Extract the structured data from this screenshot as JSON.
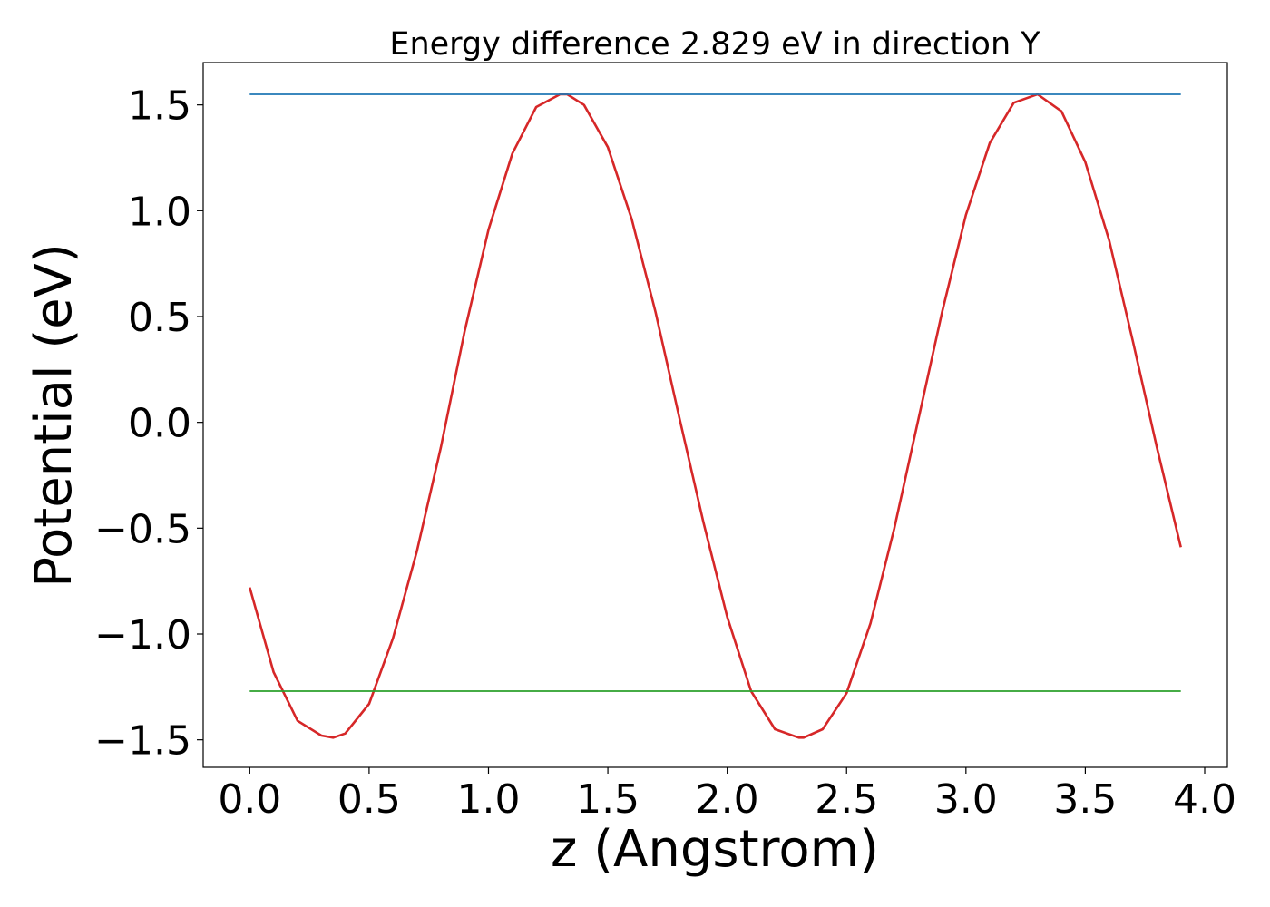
{
  "chart_data": {
    "type": "line",
    "title": "Energy difference 2.829 eV in direction Y",
    "xlabel": "z (Angstrom)",
    "ylabel": "Potential (eV)",
    "xlim": [
      -0.195,
      4.095
    ],
    "ylim": [
      -1.63,
      1.7
    ],
    "xticks": [
      0.0,
      0.5,
      1.0,
      1.5,
      2.0,
      2.5,
      3.0,
      3.5,
      4.0
    ],
    "xtick_labels": [
      "0.0",
      "0.5",
      "1.0",
      "1.5",
      "2.0",
      "2.5",
      "3.0",
      "3.5",
      "4.0"
    ],
    "yticks": [
      -1.5,
      -1.0,
      -0.5,
      0.0,
      0.5,
      1.0,
      1.5
    ],
    "ytick_labels": [
      "−1.5",
      "−1.0",
      "−0.5",
      "0.0",
      "0.5",
      "1.0",
      "1.5"
    ],
    "grid": false,
    "legend": "none",
    "series": [
      {
        "color": "#d62728",
        "x": [
          0.0,
          0.1,
          0.2,
          0.3,
          0.35,
          0.4,
          0.5,
          0.6,
          0.7,
          0.8,
          0.9,
          1.0,
          1.1,
          1.2,
          1.3,
          1.33,
          1.4,
          1.5,
          1.6,
          1.7,
          1.8,
          1.9,
          2.0,
          2.1,
          2.2,
          2.3,
          2.32,
          2.4,
          2.5,
          2.6,
          2.7,
          2.8,
          2.9,
          3.0,
          3.1,
          3.2,
          3.3,
          3.4,
          3.5,
          3.6,
          3.7,
          3.8,
          3.9
        ],
        "y": [
          -0.78,
          -1.18,
          -1.41,
          -1.48,
          -1.49,
          -1.47,
          -1.33,
          -1.02,
          -0.61,
          -0.12,
          0.43,
          0.91,
          1.27,
          1.49,
          1.55,
          1.55,
          1.5,
          1.3,
          0.96,
          0.52,
          0.02,
          -0.47,
          -0.92,
          -1.27,
          -1.45,
          -1.49,
          -1.49,
          -1.45,
          -1.28,
          -0.95,
          -0.5,
          0.01,
          0.52,
          0.98,
          1.32,
          1.51,
          1.55,
          1.47,
          1.23,
          0.86,
          0.38,
          -0.12,
          -0.59
        ]
      },
      {
        "color": "#1f77b4",
        "x": [
          0.0,
          3.9
        ],
        "y": [
          1.55,
          1.55
        ]
      },
      {
        "color": "#2ca02c",
        "x": [
          0.0,
          3.9
        ],
        "y": [
          -1.27,
          -1.27
        ]
      }
    ]
  }
}
